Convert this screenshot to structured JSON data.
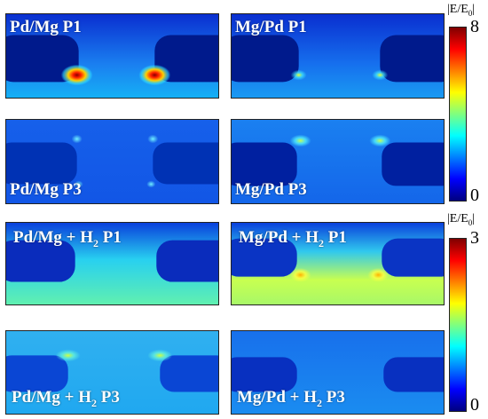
{
  "panels": [
    {
      "label": "Pd/Mg P1",
      "label_pos": "top"
    },
    {
      "label": "Mg/Pd P1",
      "label_pos": "top"
    },
    {
      "label": "Pd/Mg P3",
      "label_pos": "bottom"
    },
    {
      "label": "Mg/Pd P3",
      "label_pos": "bottom"
    },
    {
      "label_main": "Pd/Mg + H",
      "label_sub": "2",
      "label_tail": " P1",
      "label_pos": "top"
    },
    {
      "label_main": "Mg/Pd + H",
      "label_sub": "2",
      "label_tail": " P1",
      "label_pos": "top"
    },
    {
      "label_main": "Pd/Mg + H",
      "label_sub": "2",
      "label_tail": " P3",
      "label_pos": "bottom"
    },
    {
      "label_main": "Mg/Pd + H",
      "label_sub": "2",
      "label_tail": " P3",
      "label_pos": "bottom"
    }
  ],
  "colorbars": [
    {
      "title_main": "|E/E",
      "title_sub": "0",
      "title_tail": "|",
      "max": "8",
      "min": "0"
    },
    {
      "title_main": "|E/E",
      "title_sub": "0",
      "title_tail": "|",
      "max": "3",
      "min": "0"
    }
  ],
  "colors": {
    "jet": [
      "#00007f",
      "#0000ff",
      "#007fff",
      "#00ffff",
      "#7fff7f",
      "#ffff00",
      "#ff7f00",
      "#ff0000",
      "#7f0000"
    ]
  }
}
